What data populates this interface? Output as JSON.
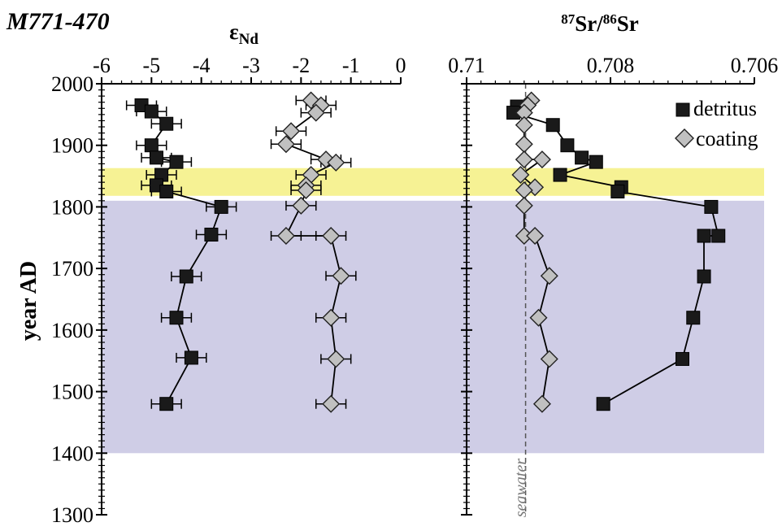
{
  "figure": {
    "core_label": "M771-470",
    "y_axis_title": "year AD",
    "seawater_label": "seawater"
  },
  "colors": {
    "detritus": "#1a1a1a",
    "coating": "#c0c0c0",
    "highlight_yellow": "#f6f294",
    "highlight_purple": "#cfcde6",
    "seawater_line": "#555555"
  },
  "chart_data": [
    {
      "id": "end",
      "type": "scatter",
      "title_main": "ε",
      "title_sub": "Nd",
      "xlim": [
        -6,
        0
      ],
      "ylim": [
        1300,
        2000
      ],
      "xticks": [
        -6,
        -5,
        -4,
        -3,
        -2,
        -1,
        0
      ],
      "xtick_labels": [
        "-6",
        "-5",
        "-4",
        "-3",
        "-2",
        "-1",
        "0"
      ],
      "yticks": [
        1300,
        1400,
        1500,
        1600,
        1700,
        1800,
        1900,
        2000
      ],
      "ytick_labels": [
        "1300",
        "1400",
        "1500",
        "1600",
        "1700",
        "1800",
        "1900",
        "2000"
      ],
      "axis_position": "top",
      "grid": false,
      "series": [
        {
          "key": "detritus",
          "marker": "square",
          "points": [
            {
              "x": -5.2,
              "y": 1965,
              "err": 0.3
            },
            {
              "x": -5.0,
              "y": 1955,
              "err": 0.3
            },
            {
              "x": -4.7,
              "y": 1935,
              "err": 0.3
            },
            {
              "x": -5.0,
              "y": 1900,
              "err": 0.3
            },
            {
              "x": -4.9,
              "y": 1880,
              "err": 0.3
            },
            {
              "x": -4.5,
              "y": 1873,
              "err": 0.3
            },
            {
              "x": -4.8,
              "y": 1852,
              "err": 0.3
            },
            {
              "x": -4.9,
              "y": 1835,
              "err": 0.3
            },
            {
              "x": -4.7,
              "y": 1825,
              "err": 0.3
            },
            {
              "x": -3.6,
              "y": 1800,
              "err": 0.3
            },
            {
              "x": -3.8,
              "y": 1755,
              "err": 0.3
            },
            {
              "x": -4.3,
              "y": 1687,
              "err": 0.3
            },
            {
              "x": -4.5,
              "y": 1620,
              "err": 0.3
            },
            {
              "x": -4.2,
              "y": 1555,
              "err": 0.3
            },
            {
              "x": -4.7,
              "y": 1480,
              "err": 0.3
            }
          ]
        },
        {
          "key": "coating",
          "marker": "diamond",
          "points": [
            {
              "x": -1.8,
              "y": 1973,
              "err": 0.3
            },
            {
              "x": -1.6,
              "y": 1965,
              "err": 0.3
            },
            {
              "x": -1.7,
              "y": 1953,
              "err": 0.3
            },
            {
              "x": -2.2,
              "y": 1923,
              "err": 0.3
            },
            {
              "x": -2.3,
              "y": 1902,
              "err": 0.3
            },
            {
              "x": -1.5,
              "y": 1877,
              "err": 0.3
            },
            {
              "x": -1.3,
              "y": 1872,
              "err": 0.3
            },
            {
              "x": -1.8,
              "y": 1852,
              "err": 0.3
            },
            {
              "x": -1.9,
              "y": 1835,
              "err": 0.3
            },
            {
              "x": -1.9,
              "y": 1827,
              "err": 0.3
            },
            {
              "x": -2.0,
              "y": 1802,
              "err": 0.3
            },
            {
              "x": -2.3,
              "y": 1753,
              "err": 0.3
            },
            {
              "x": -1.4,
              "y": 1753,
              "err": 0.3
            },
            {
              "x": -1.2,
              "y": 1688,
              "err": 0.3
            },
            {
              "x": -1.4,
              "y": 1620,
              "err": 0.3
            },
            {
              "x": -1.3,
              "y": 1553,
              "err": 0.3
            },
            {
              "x": -1.4,
              "y": 1480,
              "err": 0.3
            }
          ]
        }
      ]
    },
    {
      "id": "sr",
      "type": "scatter",
      "title_parts": [
        {
          "text": "87",
          "sup": true
        },
        {
          "text": "Sr/",
          "sup": false
        },
        {
          "text": "86",
          "sup": true
        },
        {
          "text": "Sr",
          "sup": false
        }
      ],
      "xlim": [
        0.71,
        0.706
      ],
      "ylim": [
        1300,
        2000
      ],
      "xticks": [
        0.71,
        0.708,
        0.706
      ],
      "xtick_labels": [
        "0.71",
        "0.708",
        "0.706"
      ],
      "axis_position": "top",
      "reversed": true,
      "seawater_value": 0.70918,
      "grid": false,
      "legend": {
        "placement": "top-right",
        "entries": [
          "detritus",
          "coating"
        ]
      },
      "series": [
        {
          "key": "detritus",
          "marker": "square",
          "points": [
            {
              "x": 0.7093,
              "y": 1963
            },
            {
              "x": 0.70935,
              "y": 1953
            },
            {
              "x": 0.7088,
              "y": 1933
            },
            {
              "x": 0.7086,
              "y": 1900
            },
            {
              "x": 0.7084,
              "y": 1880
            },
            {
              "x": 0.7082,
              "y": 1873
            },
            {
              "x": 0.7087,
              "y": 1852
            },
            {
              "x": 0.70785,
              "y": 1832
            },
            {
              "x": 0.7079,
              "y": 1825
            },
            {
              "x": 0.7066,
              "y": 1800
            },
            {
              "x": 0.7065,
              "y": 1753
            },
            {
              "x": 0.7067,
              "y": 1753
            },
            {
              "x": 0.7067,
              "y": 1687
            },
            {
              "x": 0.70685,
              "y": 1620
            },
            {
              "x": 0.707,
              "y": 1553
            },
            {
              "x": 0.7081,
              "y": 1480
            }
          ]
        },
        {
          "key": "coating",
          "marker": "diamond",
          "points": [
            {
              "x": 0.7091,
              "y": 1973
            },
            {
              "x": 0.70915,
              "y": 1965
            },
            {
              "x": 0.7092,
              "y": 1953
            },
            {
              "x": 0.7092,
              "y": 1933
            },
            {
              "x": 0.7092,
              "y": 1902
            },
            {
              "x": 0.7092,
              "y": 1877
            },
            {
              "x": 0.70895,
              "y": 1877
            },
            {
              "x": 0.70925,
              "y": 1852
            },
            {
              "x": 0.70905,
              "y": 1832
            },
            {
              "x": 0.7092,
              "y": 1827
            },
            {
              "x": 0.7092,
              "y": 1802
            },
            {
              "x": 0.7092,
              "y": 1753
            },
            {
              "x": 0.70905,
              "y": 1753
            },
            {
              "x": 0.70885,
              "y": 1688
            },
            {
              "x": 0.709,
              "y": 1620
            },
            {
              "x": 0.70885,
              "y": 1553
            },
            {
              "x": 0.70895,
              "y": 1480
            }
          ]
        }
      ]
    }
  ],
  "legend": {
    "detritus": "detritus",
    "coating": "coating"
  },
  "shaded_bands": [
    {
      "key": "highlight_yellow",
      "y_from": 1818,
      "y_to": 1863
    },
    {
      "key": "highlight_purple",
      "y_from": 1400,
      "y_to": 1810
    }
  ]
}
